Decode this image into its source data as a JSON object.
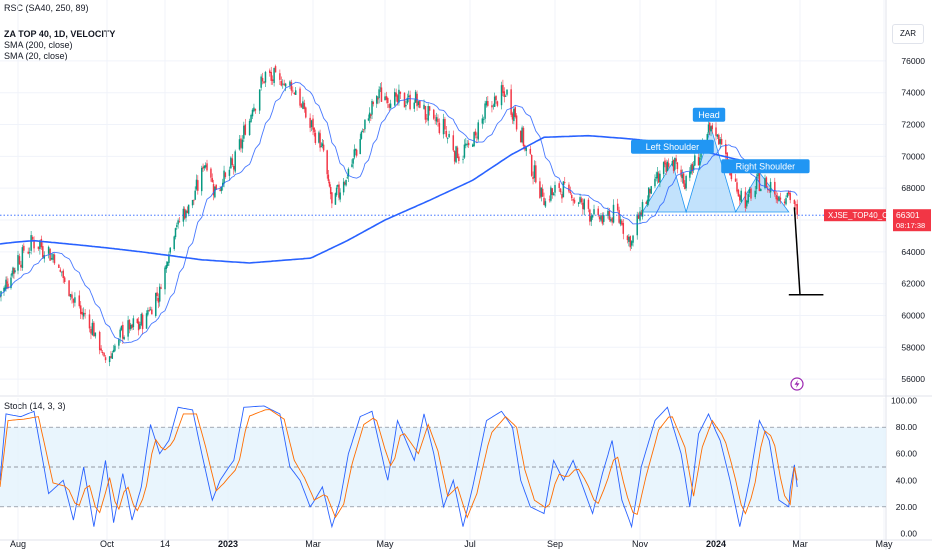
{
  "header": {
    "compare_legend": "RSC (SA40, 250, 89)",
    "title": "ZA TOP 40, 1D, VELOCITY",
    "indicators": [
      "SMA (200, close)",
      "SMA (20, close)"
    ],
    "currency": "ZAR",
    "stoch_legend": "Stoch (14, 3, 3)"
  },
  "colors": {
    "up": "#089981",
    "down": "#f23645",
    "sma200": "#2962ff",
    "sma20": "#2962ff",
    "pattern_fill": "#90caf9",
    "label_bg": "#2196f3",
    "price_badge": "#f23645",
    "stoch_k": "#2962ff",
    "stoch_d": "#ff6d00",
    "stoch_band": "#e3f2fd"
  },
  "chart_data": [
    {
      "type": "candlestick",
      "title": "ZA TOP 40, 1D, VELOCITY",
      "x_ticks": [
        "Aug",
        "Oct",
        "14",
        "2023",
        "Mar",
        "May",
        "Jul",
        "Sep",
        "Nov",
        "2024",
        "Mar",
        "May"
      ],
      "y_ticks": [
        56000,
        58000,
        60000,
        62000,
        64000,
        66000,
        68000,
        70000,
        72000,
        74000,
        76000
      ],
      "ylim": [
        55000,
        77000
      ],
      "last_price": 66301,
      "last_price_label": "66301",
      "countdown": "08:17:38",
      "symbol_label": "XJSE_TOP40_CFD",
      "close_anchors": [
        [
          "2022-07-14",
          61200
        ],
        [
          "2022-07-28",
          63000
        ],
        [
          "2022-08-12",
          64700
        ],
        [
          "2022-08-25",
          63700
        ],
        [
          "2022-09-08",
          61000
        ],
        [
          "2022-09-22",
          59000
        ],
        [
          "2022-09-30",
          57000
        ],
        [
          "2022-10-13",
          59000
        ],
        [
          "2022-10-27",
          59500
        ],
        [
          "2022-11-10",
          61500
        ],
        [
          "2022-11-21",
          65500
        ],
        [
          "2022-12-05",
          67200
        ],
        [
          "2022-12-15",
          69800
        ],
        [
          "2022-12-22",
          67800
        ],
        [
          "2023-01-05",
          69500
        ],
        [
          "2023-01-16",
          72500
        ],
        [
          "2023-01-26",
          75000
        ],
        [
          "2023-02-06",
          74800
        ],
        [
          "2023-02-16",
          74200
        ],
        [
          "2023-02-27",
          72000
        ],
        [
          "2023-03-09",
          70500
        ],
        [
          "2023-03-17",
          67000
        ],
        [
          "2023-03-30",
          68800
        ],
        [
          "2023-04-13",
          71800
        ],
        [
          "2023-04-26",
          74000
        ],
        [
          "2023-05-08",
          73500
        ],
        [
          "2023-05-22",
          73600
        ],
        [
          "2023-06-01",
          72500
        ],
        [
          "2023-06-12",
          71800
        ],
        [
          "2023-06-22",
          70000
        ],
        [
          "2023-07-03",
          70900
        ],
        [
          "2023-07-13",
          73000
        ],
        [
          "2023-07-27",
          74000
        ],
        [
          "2023-08-03",
          72500
        ],
        [
          "2023-08-14",
          69500
        ],
        [
          "2023-08-24",
          67300
        ],
        [
          "2023-09-05",
          68000
        ],
        [
          "2023-09-15",
          67400
        ],
        [
          "2023-09-26",
          66500
        ],
        [
          "2023-10-04",
          66000
        ],
        [
          "2023-10-16",
          66400
        ],
        [
          "2023-10-25",
          64500
        ],
        [
          "2023-11-02",
          66600
        ],
        [
          "2023-11-14",
          68500
        ],
        [
          "2023-11-27",
          69700
        ],
        [
          "2023-12-06",
          68500
        ],
        [
          "2023-12-14",
          69400
        ],
        [
          "2023-12-20",
          70300
        ],
        [
          "2023-12-28",
          71800
        ],
        [
          "2024-01-05",
          71000
        ],
        [
          "2024-01-12",
          68700
        ],
        [
          "2024-01-22",
          67000
        ],
        [
          "2024-01-31",
          68400
        ],
        [
          "2024-02-09",
          68000
        ],
        [
          "2024-02-16",
          67400
        ],
        [
          "2024-02-22",
          67800
        ],
        [
          "2024-02-28",
          66301
        ]
      ],
      "sma200_anchors": [
        [
          "2022-07-14",
          64500
        ],
        [
          "2022-08-12",
          64700
        ],
        [
          "2022-09-15",
          64400
        ],
        [
          "2022-10-27",
          64000
        ],
        [
          "2022-12-12",
          63500
        ],
        [
          "2023-01-16",
          63300
        ],
        [
          "2023-02-27",
          63600
        ],
        [
          "2023-03-30",
          64700
        ],
        [
          "2023-05-01",
          66000
        ],
        [
          "2023-06-01",
          67200
        ],
        [
          "2023-07-03",
          68500
        ],
        [
          "2023-07-31",
          70100
        ],
        [
          "2023-08-24",
          71200
        ],
        [
          "2023-09-25",
          71300
        ],
        [
          "2023-10-25",
          71100
        ],
        [
          "2023-11-27",
          70800
        ],
        [
          "2023-12-28",
          70200
        ],
        [
          "2024-01-31",
          69500
        ],
        [
          "2024-02-28",
          69100
        ]
      ]
    },
    {
      "type": "line",
      "title": "Stoch (14, 3, 3)",
      "y_ticks": [
        0,
        20,
        40,
        60,
        80,
        100
      ],
      "y_tick_labels": [
        "0.00",
        "20.00",
        "40.00",
        "60.00",
        "80.00",
        "100.00"
      ],
      "ylim": [
        -5,
        102
      ],
      "band": [
        20,
        80
      ],
      "midline": 50,
      "series": [
        {
          "role": "k",
          "anchors": [
            [
              "2022-07-14",
              40
            ],
            [
              "2022-07-20",
              90
            ],
            [
              "2022-08-03",
              88
            ],
            [
              "2022-08-12",
              92
            ],
            [
              "2022-08-22",
              30
            ],
            [
              "2022-09-01",
              40
            ],
            [
              "2022-09-08",
              10
            ],
            [
              "2022-09-15",
              50
            ],
            [
              "2022-09-22",
              5
            ],
            [
              "2022-09-30",
              55
            ],
            [
              "2022-10-06",
              8
            ],
            [
              "2022-10-13",
              45
            ],
            [
              "2022-10-20",
              10
            ],
            [
              "2022-10-27",
              35
            ],
            [
              "2022-11-03",
              82
            ],
            [
              "2022-11-10",
              60
            ],
            [
              "2022-11-17",
              70
            ],
            [
              "2022-11-24",
              95
            ],
            [
              "2022-12-05",
              93
            ],
            [
              "2022-12-12",
              60
            ],
            [
              "2022-12-20",
              25
            ],
            [
              "2022-12-26",
              40
            ],
            [
              "2023-01-05",
              55
            ],
            [
              "2023-01-12",
              95
            ],
            [
              "2023-01-26",
              96
            ],
            [
              "2023-02-06",
              90
            ],
            [
              "2023-02-13",
              50
            ],
            [
              "2023-02-20",
              40
            ],
            [
              "2023-02-27",
              20
            ],
            [
              "2023-03-09",
              35
            ],
            [
              "2023-03-17",
              5
            ],
            [
              "2023-03-24",
              25
            ],
            [
              "2023-03-31",
              60
            ],
            [
              "2023-04-10",
              88
            ],
            [
              "2023-04-20",
              92
            ],
            [
              "2023-05-03",
              40
            ],
            [
              "2023-05-10",
              85
            ],
            [
              "2023-05-22",
              55
            ],
            [
              "2023-05-29",
              90
            ],
            [
              "2023-06-05",
              60
            ],
            [
              "2023-06-12",
              20
            ],
            [
              "2023-06-19",
              40
            ],
            [
              "2023-06-26",
              5
            ],
            [
              "2023-07-03",
              35
            ],
            [
              "2023-07-13",
              85
            ],
            [
              "2023-07-24",
              92
            ],
            [
              "2023-08-01",
              80
            ],
            [
              "2023-08-07",
              40
            ],
            [
              "2023-08-14",
              20
            ],
            [
              "2023-08-24",
              15
            ],
            [
              "2023-08-31",
              55
            ],
            [
              "2023-09-07",
              40
            ],
            [
              "2023-09-14",
              55
            ],
            [
              "2023-09-21",
              35
            ],
            [
              "2023-09-28",
              15
            ],
            [
              "2023-10-05",
              45
            ],
            [
              "2023-10-12",
              70
            ],
            [
              "2023-10-19",
              25
            ],
            [
              "2023-10-26",
              5
            ],
            [
              "2023-11-02",
              50
            ],
            [
              "2023-11-13",
              85
            ],
            [
              "2023-11-23",
              95
            ],
            [
              "2023-12-04",
              60
            ],
            [
              "2023-12-11",
              20
            ],
            [
              "2023-12-18",
              75
            ],
            [
              "2023-12-26",
              90
            ],
            [
              "2024-01-04",
              70
            ],
            [
              "2024-01-11",
              40
            ],
            [
              "2024-01-18",
              5
            ],
            [
              "2024-01-25",
              40
            ],
            [
              "2024-02-01",
              85
            ],
            [
              "2024-02-08",
              70
            ],
            [
              "2024-02-15",
              25
            ],
            [
              "2024-02-22",
              20
            ],
            [
              "2024-02-25",
              60
            ],
            [
              "2024-02-28",
              35
            ]
          ]
        },
        {
          "role": "d",
          "anchors": [
            [
              "2022-07-14",
              35
            ],
            [
              "2022-07-22",
              85
            ],
            [
              "2022-08-05",
              86
            ],
            [
              "2022-08-15",
              88
            ],
            [
              "2022-08-25",
              38
            ],
            [
              "2022-09-04",
              35
            ],
            [
              "2022-09-11",
              18
            ],
            [
              "2022-09-18",
              40
            ],
            [
              "2022-09-25",
              12
            ],
            [
              "2022-10-03",
              42
            ],
            [
              "2022-10-09",
              15
            ],
            [
              "2022-10-16",
              38
            ],
            [
              "2022-10-23",
              15
            ],
            [
              "2022-10-30",
              30
            ],
            [
              "2022-11-06",
              72
            ],
            [
              "2022-11-13",
              62
            ],
            [
              "2022-11-20",
              68
            ],
            [
              "2022-11-28",
              90
            ],
            [
              "2022-12-08",
              90
            ],
            [
              "2022-12-15",
              65
            ],
            [
              "2022-12-23",
              32
            ],
            [
              "2022-12-29",
              38
            ],
            [
              "2023-01-08",
              50
            ],
            [
              "2023-01-15",
              88
            ],
            [
              "2023-01-29",
              94
            ],
            [
              "2023-02-09",
              86
            ],
            [
              "2023-02-16",
              55
            ],
            [
              "2023-02-23",
              42
            ],
            [
              "2023-03-02",
              25
            ],
            [
              "2023-03-12",
              30
            ],
            [
              "2023-03-20",
              12
            ],
            [
              "2023-03-27",
              22
            ],
            [
              "2023-04-03",
              52
            ],
            [
              "2023-04-13",
              82
            ],
            [
              "2023-04-23",
              88
            ],
            [
              "2023-05-06",
              48
            ],
            [
              "2023-05-13",
              78
            ],
            [
              "2023-05-25",
              60
            ],
            [
              "2023-06-01",
              82
            ],
            [
              "2023-06-08",
              62
            ],
            [
              "2023-06-15",
              28
            ],
            [
              "2023-06-22",
              35
            ],
            [
              "2023-06-29",
              12
            ],
            [
              "2023-07-06",
              30
            ],
            [
              "2023-07-16",
              75
            ],
            [
              "2023-07-27",
              88
            ],
            [
              "2023-08-04",
              80
            ],
            [
              "2023-08-10",
              48
            ],
            [
              "2023-08-17",
              25
            ],
            [
              "2023-08-27",
              18
            ],
            [
              "2023-09-03",
              45
            ],
            [
              "2023-09-10",
              42
            ],
            [
              "2023-09-17",
              50
            ],
            [
              "2023-09-24",
              38
            ],
            [
              "2023-10-01",
              20
            ],
            [
              "2023-10-08",
              38
            ],
            [
              "2023-10-15",
              62
            ],
            [
              "2023-10-22",
              30
            ],
            [
              "2023-10-29",
              10
            ],
            [
              "2023-11-05",
              40
            ],
            [
              "2023-11-16",
              78
            ],
            [
              "2023-11-26",
              90
            ],
            [
              "2023-12-07",
              65
            ],
            [
              "2023-12-14",
              28
            ],
            [
              "2023-12-21",
              65
            ],
            [
              "2023-12-29",
              85
            ],
            [
              "2024-01-07",
              72
            ],
            [
              "2024-01-14",
              45
            ],
            [
              "2024-01-21",
              12
            ],
            [
              "2024-01-28",
              32
            ],
            [
              "2024-02-04",
              78
            ],
            [
              "2024-02-11",
              72
            ],
            [
              "2024-02-18",
              30
            ],
            [
              "2024-02-23",
              22
            ],
            [
              "2024-02-26",
              50
            ],
            [
              "2024-02-28",
              40
            ]
          ]
        }
      ]
    }
  ],
  "annotations": {
    "head_shoulders": {
      "left_shoulder_label": "Left Shoulder",
      "head_label": "Head",
      "right_shoulder_label": "Right Shoulder",
      "points": [
        [
          "2023-11-03",
          66500
        ],
        [
          "2023-11-27",
          69600
        ],
        [
          "2023-12-08",
          66500
        ],
        [
          "2023-12-28",
          71800
        ],
        [
          "2024-01-15",
          66500
        ],
        [
          "2024-02-01",
          69000
        ],
        [
          "2024-02-22",
          66500
        ]
      ],
      "neckline": 66500
    },
    "projection": {
      "from": [
        "2024-02-26",
        66800
      ],
      "to": [
        "2024-03-01",
        61300
      ],
      "target_level": 61300,
      "target_from": "2024-02-22",
      "target_to": "2024-03-18"
    },
    "alert_icon": "lightning-icon"
  }
}
